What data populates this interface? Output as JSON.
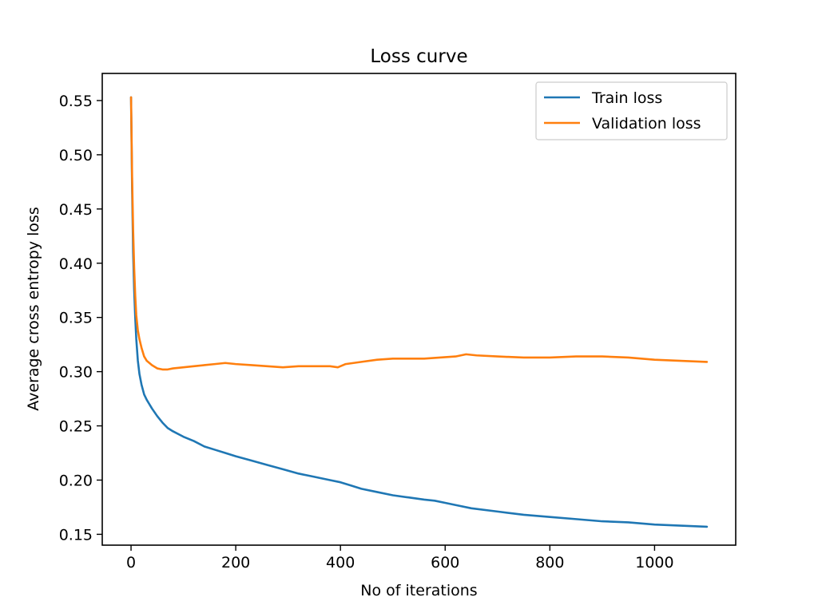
{
  "chart_data": {
    "type": "line",
    "title": "Loss curve",
    "xlabel": "No of iterations",
    "ylabel": "Average cross entropy loss",
    "xlim": [
      -55,
      1155
    ],
    "ylim": [
      0.14,
      0.575
    ],
    "xticks": [
      0,
      200,
      400,
      600,
      800,
      1000
    ],
    "xtick_labels": [
      "0",
      "200",
      "400",
      "600",
      "800",
      "1000"
    ],
    "yticks": [
      0.15,
      0.2,
      0.25,
      0.3,
      0.35,
      0.4,
      0.45,
      0.5,
      0.55
    ],
    "ytick_labels": [
      "0.15",
      "0.20",
      "0.25",
      "0.30",
      "0.35",
      "0.40",
      "0.45",
      "0.50",
      "0.55"
    ],
    "grid": false,
    "legend": "top-right",
    "series": [
      {
        "name": "Train loss",
        "color": "#1f77b4",
        "x": [
          0,
          2,
          4,
          6,
          8,
          10,
          13,
          16,
          20,
          25,
          30,
          35,
          40,
          50,
          60,
          70,
          80,
          100,
          120,
          140,
          160,
          180,
          200,
          230,
          260,
          290,
          320,
          350,
          380,
          400,
          420,
          440,
          470,
          500,
          530,
          560,
          580,
          600,
          620,
          650,
          700,
          750,
          800,
          850,
          900,
          950,
          1000,
          1050,
          1100
        ],
        "y": [
          0.553,
          0.47,
          0.41,
          0.375,
          0.35,
          0.33,
          0.31,
          0.298,
          0.288,
          0.279,
          0.274,
          0.27,
          0.266,
          0.259,
          0.253,
          0.248,
          0.245,
          0.24,
          0.236,
          0.231,
          0.228,
          0.225,
          0.222,
          0.218,
          0.214,
          0.21,
          0.206,
          0.203,
          0.2,
          0.198,
          0.195,
          0.192,
          0.189,
          0.186,
          0.184,
          0.182,
          0.181,
          0.179,
          0.177,
          0.174,
          0.171,
          0.168,
          0.166,
          0.164,
          0.162,
          0.161,
          0.159,
          0.158,
          0.157
        ]
      },
      {
        "name": "Validation loss",
        "color": "#ff7f0e",
        "x": [
          0,
          2,
          4,
          6,
          8,
          10,
          13,
          16,
          20,
          25,
          30,
          35,
          40,
          50,
          60,
          70,
          80,
          100,
          120,
          140,
          160,
          180,
          200,
          230,
          260,
          290,
          320,
          350,
          380,
          395,
          410,
          440,
          470,
          500,
          530,
          560,
          590,
          620,
          640,
          660,
          700,
          750,
          800,
          850,
          900,
          950,
          1000,
          1050,
          1100
        ],
        "y": [
          0.553,
          0.48,
          0.43,
          0.395,
          0.37,
          0.352,
          0.338,
          0.33,
          0.322,
          0.314,
          0.31,
          0.308,
          0.306,
          0.303,
          0.302,
          0.302,
          0.303,
          0.304,
          0.305,
          0.306,
          0.307,
          0.308,
          0.307,
          0.306,
          0.305,
          0.304,
          0.305,
          0.305,
          0.305,
          0.304,
          0.307,
          0.309,
          0.311,
          0.312,
          0.312,
          0.312,
          0.313,
          0.314,
          0.316,
          0.315,
          0.314,
          0.313,
          0.313,
          0.314,
          0.314,
          0.313,
          0.311,
          0.31,
          0.309
        ]
      }
    ]
  }
}
